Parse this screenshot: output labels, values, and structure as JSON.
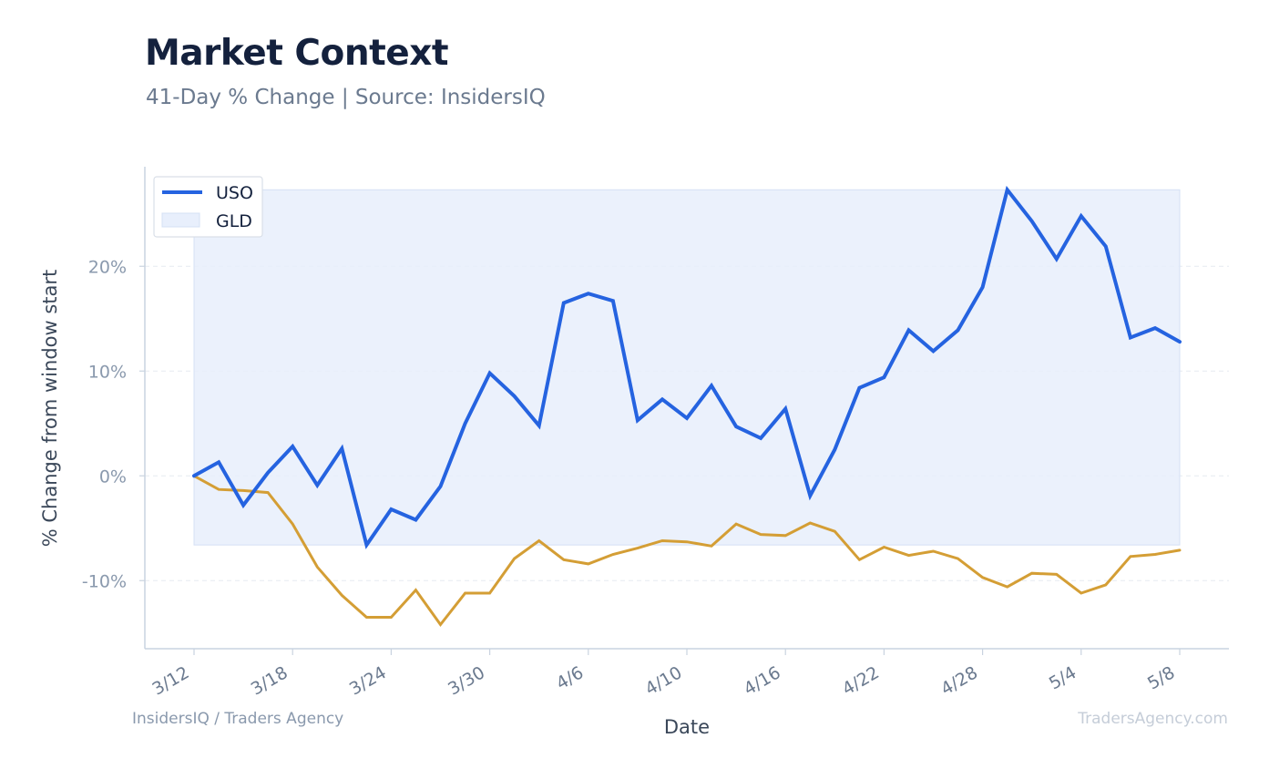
{
  "header": {
    "title": "Market Context",
    "subtitle": "41-Day % Change | Source: InsidersIQ"
  },
  "footer": {
    "left": "InsidersIQ / Traders Agency",
    "right": "TradersAgency.com"
  },
  "colors": {
    "uso": "#2563e0",
    "gld": "#d49e35",
    "fill": "#e8effc",
    "axis": "#c9d3e0",
    "grid": "#e6eaf0"
  },
  "chart_data": {
    "type": "line",
    "xlabel": "Date",
    "ylabel": "% Change from window start",
    "ylim": [
      -16.5,
      29.5
    ],
    "yticks": [
      20,
      10,
      0,
      -10
    ],
    "ytick_labels": [
      "20%",
      "10%",
      "0%",
      "-10%"
    ],
    "xticks": [
      "3/12",
      "3/18",
      "3/24",
      "3/30",
      "4/6",
      "4/10",
      "4/16",
      "4/22",
      "4/28",
      "5/4",
      "5/8"
    ],
    "grid": true,
    "legend_position": "top-left",
    "series": [
      {
        "name": "USO",
        "values": [
          0,
          1.3,
          -2.8,
          0.3,
          2.8,
          -0.9,
          2.6,
          -6.6,
          -3.2,
          -4.2,
          -1.0,
          5.0,
          9.8,
          7.6,
          4.8,
          16.5,
          17.4,
          16.7,
          5.3,
          7.3,
          5.5,
          8.6,
          4.7,
          3.6,
          6.4,
          -1.9,
          2.5,
          8.4,
          9.4,
          13.9,
          11.9,
          13.9,
          18.0,
          27.3,
          24.3,
          20.7,
          24.8,
          21.9,
          13.2,
          14.1,
          12.8
        ]
      },
      {
        "name": "GLD",
        "values": [
          0,
          -1.3,
          -1.4,
          -1.6,
          -4.6,
          -8.7,
          -11.4,
          -13.5,
          -13.5,
          -10.9,
          -14.2,
          -11.2,
          -11.2,
          -7.9,
          -6.2,
          -8.0,
          -8.4,
          -7.5,
          -6.9,
          -6.2,
          -6.3,
          -6.7,
          -4.6,
          -5.6,
          -5.7,
          -4.5,
          -5.3,
          -8.0,
          -6.8,
          -7.6,
          -7.2,
          -7.9,
          -9.7,
          -10.6,
          -9.3,
          -9.4,
          -11.2,
          -10.4,
          -7.7,
          -7.5,
          -7.1
        ]
      }
    ],
    "area_band": [
      -6.6,
      27.3
    ]
  }
}
